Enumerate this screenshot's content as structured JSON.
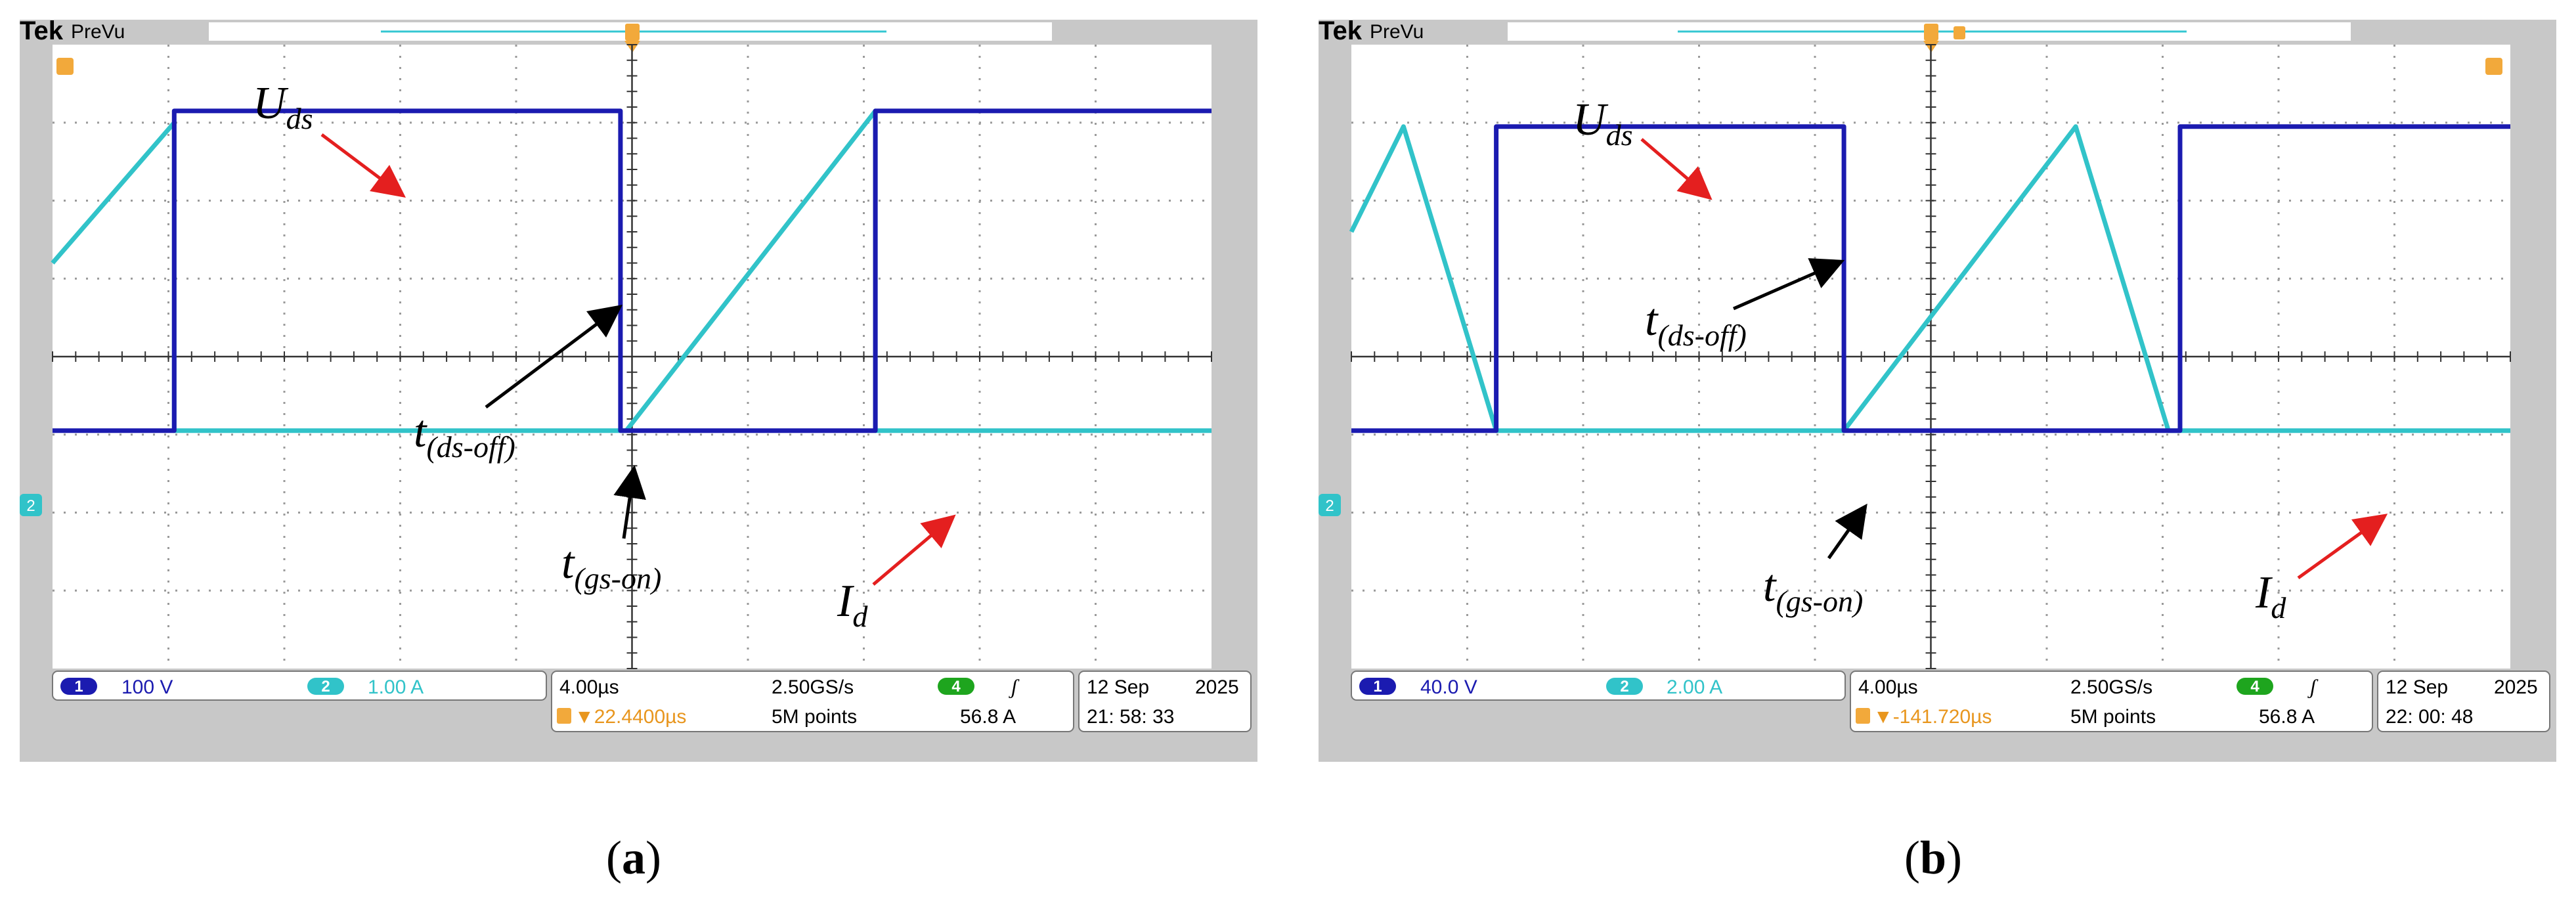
{
  "brand": {
    "tek": "Tek",
    "mode": "PreVu"
  },
  "panels": [
    {
      "caption": "a",
      "ch1": {
        "num": "1",
        "scale": "100 V"
      },
      "ch2": {
        "num": "2",
        "scale": "1.00 A"
      },
      "horizontal": {
        "timebase": "4.00µs",
        "rate": "2.50GS/s",
        "delay": "▼22.4400µs",
        "points": "5M points"
      },
      "trigger": {
        "num": "4",
        "slope": "ʃ",
        "level": "56.8 A"
      },
      "date": {
        "day": "12 Sep",
        "year": "2025",
        "time": "21: 58: 33"
      },
      "annotations": [
        {
          "base": "U",
          "sub": "ds"
        },
        {
          "base": "t",
          "sub": "(ds-off)"
        },
        {
          "base": "t",
          "sub": "(gs-on)"
        },
        {
          "base": "I",
          "sub": "d"
        }
      ]
    },
    {
      "caption": "b",
      "ch1": {
        "num": "1",
        "scale": "40.0 V"
      },
      "ch2": {
        "num": "2",
        "scale": "2.00 A"
      },
      "horizontal": {
        "timebase": "4.00µs",
        "rate": "2.50GS/s",
        "delay": "▼-141.720µs",
        "points": "5M points"
      },
      "trigger": {
        "num": "4",
        "slope": "ʃ",
        "level": "56.8 A"
      },
      "date": {
        "day": "12 Sep",
        "year": "2025",
        "time": "22: 00: 48"
      },
      "annotations": [
        {
          "base": "U",
          "sub": "ds"
        },
        {
          "base": "t",
          "sub": "(ds-off)"
        },
        {
          "base": "t",
          "sub": "(gs-on)"
        },
        {
          "base": "I",
          "sub": "d"
        }
      ]
    }
  ],
  "chart_data": [
    {
      "type": "line",
      "x_divisions": 10,
      "y_divisions": 8,
      "x_unit": "div",
      "y_unit": "div",
      "grid": true,
      "series": [
        {
          "x": [
            0,
            1.05,
            1.05,
            4.9,
            4.9,
            7.1,
            7.1,
            10
          ],
          "y": [
            -0.95,
            -0.95,
            3.15,
            3.15,
            -0.95,
            -0.95,
            3.15,
            3.15
          ]
        },
        {
          "x": [
            0,
            1.05,
            1.05,
            4.95,
            7.1,
            7.1,
            10
          ],
          "y": [
            1.2,
            3.0,
            -0.95,
            -0.95,
            3.15,
            -0.95,
            -0.95
          ]
        }
      ]
    },
    {
      "type": "line",
      "x_divisions": 10,
      "y_divisions": 8,
      "x_unit": "div",
      "y_unit": "div",
      "grid": true,
      "series": [
        {
          "x": [
            0,
            1.25,
            1.25,
            4.25,
            4.25,
            7.15,
            7.15,
            10
          ],
          "y": [
            -0.95,
            -0.95,
            2.95,
            2.95,
            -0.95,
            -0.95,
            2.95,
            2.95
          ]
        },
        {
          "x": [
            0,
            0.45,
            1.25,
            1.25,
            4.25,
            6.25,
            7.05,
            7.05,
            10
          ],
          "y": [
            1.6,
            2.95,
            -0.95,
            -0.95,
            -0.95,
            2.95,
            -0.95,
            -0.95,
            -0.95
          ]
        }
      ]
    }
  ]
}
